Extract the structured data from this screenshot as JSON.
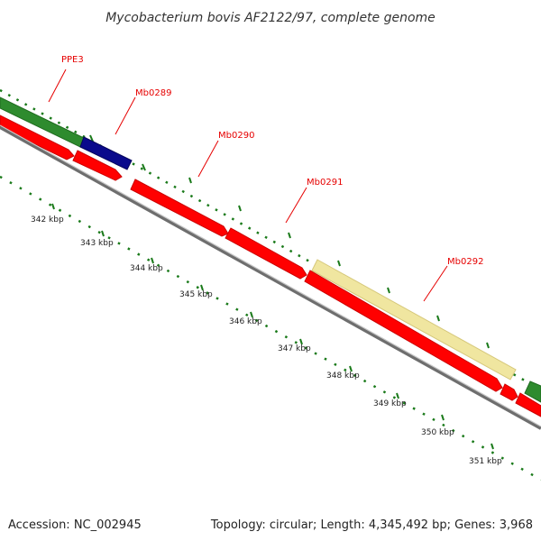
{
  "title": "Mycobacterium bovis AF2122/97, complete genome",
  "accession_text": "Accession: NC_002945",
  "summary_text": "Topology: circular; Length: 4,345,492 bp; Genes: 3,968",
  "colors": {
    "cds_red": "#ff0000",
    "green_feature": "#2e8b2e",
    "blue_feature": "#0a0a8c",
    "yellow_feature": "#f0e6a0",
    "backbone": "#808080",
    "tick_green": "#1a7a1a",
    "label_red": "#e60000"
  },
  "gene_labels": [
    "PPE3",
    "Mb0289",
    "Mb0290",
    "Mb0291",
    "Mb0292"
  ],
  "tick_labels": [
    "342 kbp",
    "343 kbp",
    "344 kbp",
    "345 kbp",
    "346 kbp",
    "347 kbp",
    "348 kbp",
    "349 kbp",
    "350 kbp",
    "351 kbp"
  ]
}
